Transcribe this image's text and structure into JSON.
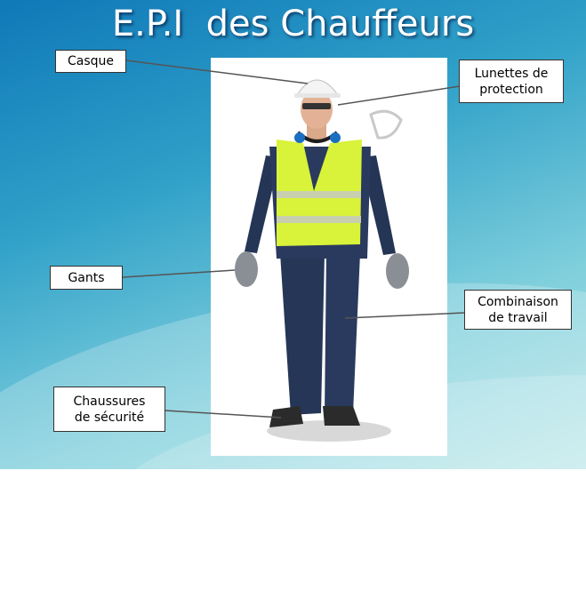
{
  "title": "E.P.I  des Chauffeurs",
  "labels": {
    "casque": "Casque",
    "lunettes": "Lunettes de\nprotection",
    "gants": "Gants",
    "combinaison": "Combinaison\nde travail",
    "chaussures": "Chaussures\nde sécurité"
  },
  "colors": {
    "vest": "#d9f23a",
    "coverall": "#2a3a5e",
    "helmet": "#f4f4f4",
    "glove": "#8a8f96"
  }
}
